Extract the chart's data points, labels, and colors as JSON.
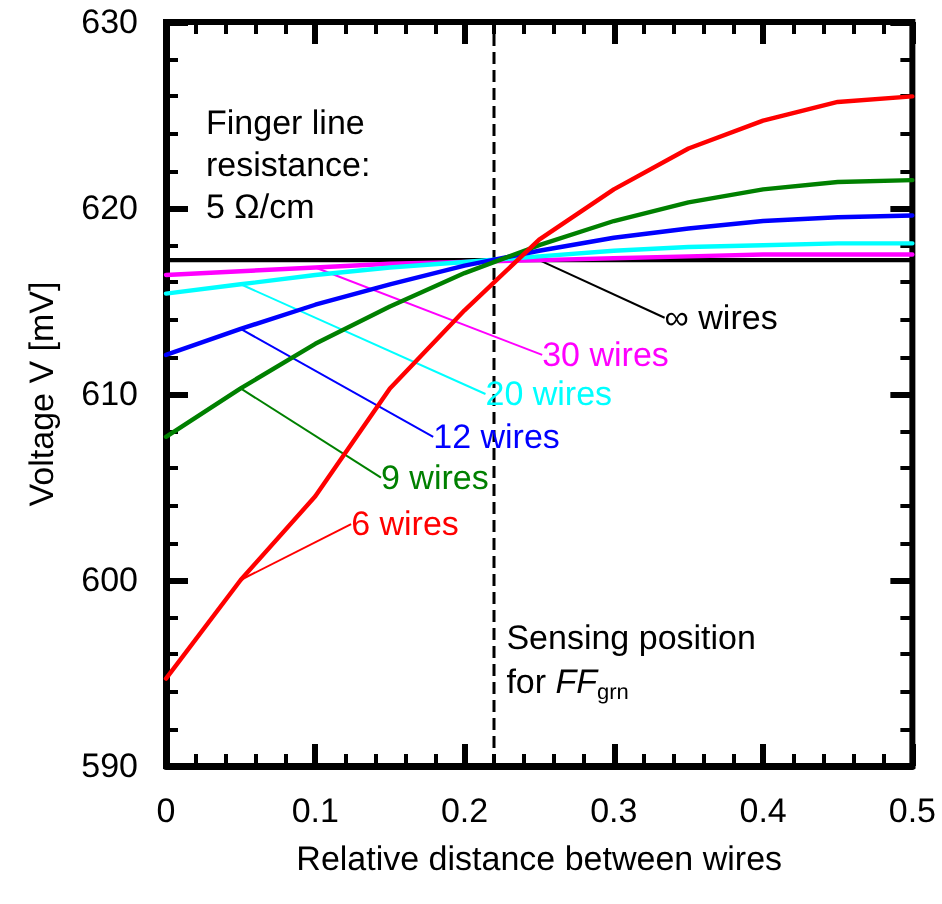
{
  "chart_data": {
    "type": "line",
    "xlabel": "Relative distance between wires",
    "ylabel": "Voltage V [mV]",
    "x": [
      0,
      0.05,
      0.1,
      0.15,
      0.2,
      0.25,
      0.3,
      0.35,
      0.4,
      0.45,
      0.5
    ],
    "series": [
      {
        "name": "∞ wires",
        "color": "#000000",
        "x": [
          0,
          0.25,
          0.5
        ],
        "values": [
          617.2,
          617.2,
          617.2
        ]
      },
      {
        "name": "30 wires",
        "color": "#ff00ff",
        "values": [
          616.4,
          616.6,
          616.8,
          617.0,
          617.1,
          617.2,
          617.3,
          617.4,
          617.5,
          617.5,
          617.5
        ]
      },
      {
        "name": "20 wires",
        "color": "#00ffff",
        "values": [
          615.4,
          615.9,
          616.4,
          616.8,
          617.1,
          617.4,
          617.7,
          617.9,
          618.0,
          618.1,
          618.1
        ]
      },
      {
        "name": "12 wires",
        "color": "#0000ff",
        "values": [
          612.1,
          613.5,
          614.8,
          615.9,
          616.9,
          617.7,
          618.4,
          618.9,
          619.3,
          619.5,
          619.6
        ]
      },
      {
        "name": "9 wires",
        "color": "#008000",
        "values": [
          607.7,
          610.3,
          612.7,
          614.7,
          616.5,
          618.0,
          619.3,
          620.3,
          621.0,
          621.4,
          621.5
        ]
      },
      {
        "name": "6 wires",
        "color": "#ff0000",
        "values": [
          594.7,
          600.0,
          604.5,
          610.3,
          614.5,
          618.3,
          621.0,
          623.2,
          624.7,
          625.7,
          626.0
        ]
      }
    ],
    "xlim": [
      0,
      0.5
    ],
    "xticks": [
      0,
      0.1,
      0.2,
      0.3,
      0.4,
      0.5
    ],
    "ylim": [
      590,
      630
    ],
    "yticks": [
      590,
      600,
      610,
      620,
      630
    ],
    "ref_lines": [
      {
        "axis": "x",
        "value": 0.22,
        "label": "Sensing position for FF$_{grn}$",
        "color": "#000000",
        "line_style": "dashed"
      }
    ],
    "annotations": [
      "Finger line resistance: 5 Ω/cm"
    ],
    "grid": false,
    "legend": false,
    "marker": "none",
    "line_style": "solid"
  }
}
